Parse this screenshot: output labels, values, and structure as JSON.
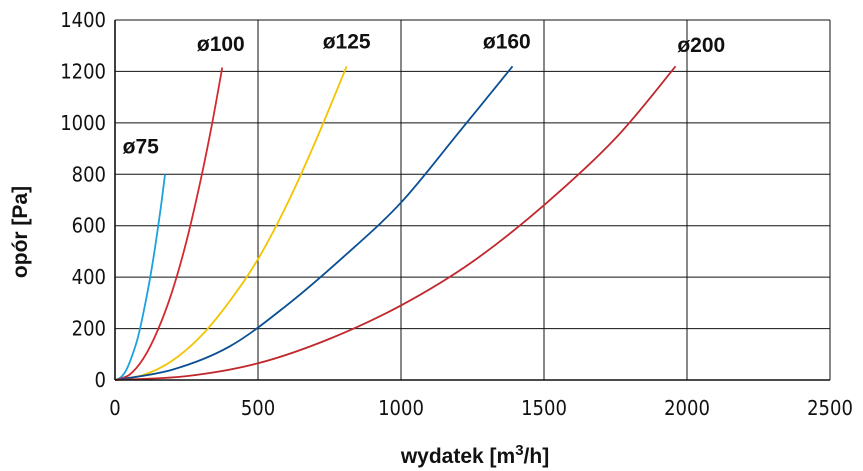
{
  "chart_data": {
    "type": "line",
    "title": "",
    "xlabel": "wydatek [m",
    "xlabel_sup": "3",
    "xlabel_suffix": "/h]",
    "ylabel": "opór [Pa]",
    "xlim": [
      0,
      2500
    ],
    "ylim": [
      0,
      1400
    ],
    "x_ticks": [
      0,
      500,
      1000,
      1500,
      2000,
      2500
    ],
    "y_ticks": [
      0,
      200,
      400,
      600,
      800,
      1000,
      1200,
      1400
    ],
    "grid": true,
    "legend": "inline-labels",
    "series": [
      {
        "name": "ø75",
        "color": "#1aa3dd",
        "x": [
          0,
          20,
          40,
          60,
          80,
          100,
          120,
          140,
          160,
          175
        ],
        "y": [
          0,
          10,
          40,
          95,
          165,
          265,
          380,
          515,
          670,
          800
        ],
        "label_x": 90,
        "label_y": 880
      },
      {
        "name": "ø100",
        "color": "#d32a2f",
        "x": [
          0,
          50,
          100,
          150,
          200,
          250,
          300,
          340,
          375
        ],
        "y": [
          0,
          20,
          85,
          195,
          345,
          540,
          780,
          1000,
          1215
        ],
        "label_x": 370,
        "label_y": 1280
      },
      {
        "name": "ø125",
        "color": "#f3c400",
        "x": [
          0,
          100,
          200,
          300,
          400,
          500,
          600,
          700,
          810
        ],
        "y": [
          0,
          20,
          75,
          170,
          305,
          470,
          680,
          925,
          1220
        ],
        "label_x": 810,
        "label_y": 1290
      },
      {
        "name": "ø160",
        "color": "#0a4f94",
        "x": [
          0,
          200,
          400,
          600,
          800,
          1000,
          1200,
          1390
        ],
        "y": [
          0,
          40,
          130,
          290,
          480,
          690,
          960,
          1220
        ],
        "label_x": 1370,
        "label_y": 1290
      },
      {
        "name": "ø200",
        "color": "#c0282d",
        "x": [
          0,
          250,
          500,
          750,
          1000,
          1250,
          1500,
          1750,
          1960
        ],
        "y": [
          0,
          15,
          65,
          160,
          290,
          460,
          680,
          940,
          1220
        ],
        "label_x": 2050,
        "label_y": 1275
      }
    ]
  }
}
